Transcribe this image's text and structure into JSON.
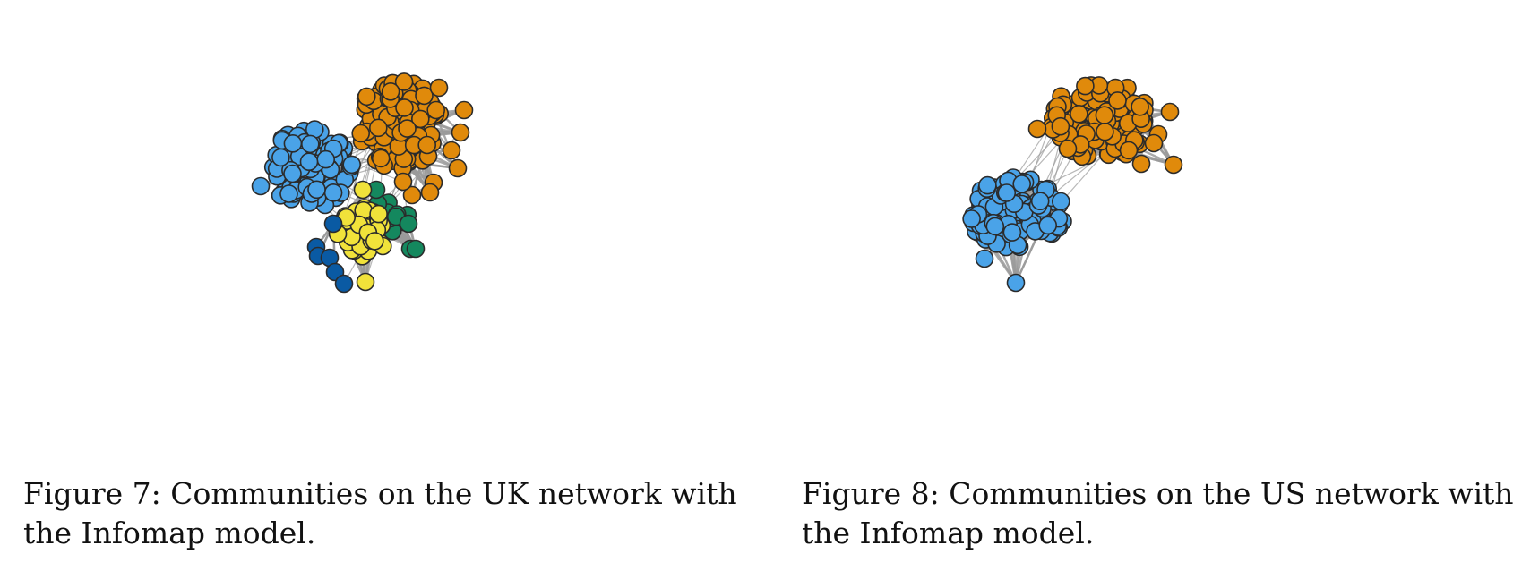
{
  "colors": {
    "edge": "#9a9a9a",
    "orange": "#e08a0b",
    "light_blue": "#4aa3e8",
    "yellow": "#f1e23a",
    "green": "#14885e",
    "dark_blue": "#0a5aa3",
    "node_outline": "#2b2b2b"
  },
  "figures": [
    {
      "caption": "Figure 7: Communities on the UK network with the Infomap model.",
      "communities": [
        "orange",
        "light_blue",
        "yellow",
        "green",
        "dark_blue"
      ]
    },
    {
      "caption": "Figure 8: Communities on the US network with the Infomap model.",
      "communities": [
        "orange",
        "light_blue"
      ]
    }
  ]
}
